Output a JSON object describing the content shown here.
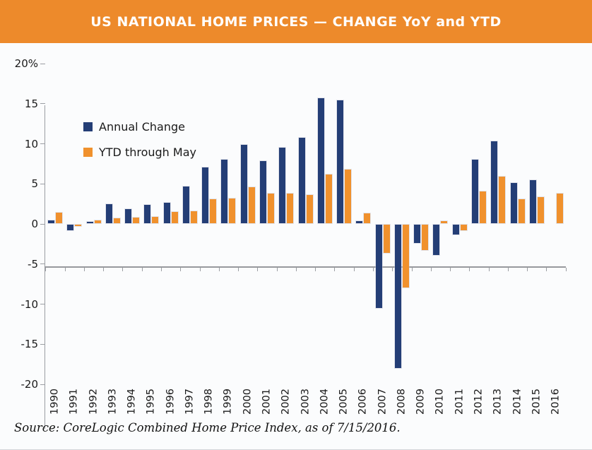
{
  "header": {
    "title": "US NATIONAL HOME PRICES — CHANGE YoY and YTD",
    "bg_color": "#ed8a2b"
  },
  "legend": {
    "items": [
      {
        "label": "Annual Change",
        "color": "#243e76"
      },
      {
        "label": "YTD through May",
        "color": "#f0912d"
      }
    ]
  },
  "source": {
    "text": "Source: CoreLogic Combined Home Price Index, as of 7/15/2016."
  },
  "colors": {
    "header_bg": "#ed8a2b",
    "annual_bar": "#243e76",
    "ytd_bar": "#f0912d",
    "axis": "#9b9ea3",
    "background": "#fbfcfd"
  },
  "chart_data": {
    "type": "bar",
    "title": "US NATIONAL HOME PRICES — CHANGE YoY and YTD",
    "categories": [
      "1990",
      "1991",
      "1992",
      "1993",
      "1994",
      "1995",
      "1996",
      "1997",
      "1998",
      "1999",
      "2000",
      "2001",
      "2002",
      "2003",
      "2004",
      "2005",
      "2006",
      "2007",
      "2008",
      "2009",
      "2010",
      "2011",
      "2012",
      "2013",
      "2014",
      "2015",
      "2016"
    ],
    "series": [
      {
        "name": "Annual Change",
        "color": "#243e76",
        "values": [
          0.4,
          -0.7,
          0.2,
          2.4,
          1.8,
          2.3,
          2.6,
          4.6,
          7.0,
          7.9,
          9.8,
          7.8,
          9.4,
          10.7,
          15.6,
          15.3,
          0.3,
          -10.4,
          -17.9,
          -2.3,
          -3.8,
          -1.2,
          7.9,
          10.2,
          5.0,
          5.4,
          null
        ]
      },
      {
        "name": "YTD through May",
        "color": "#f0912d",
        "values": [
          1.3,
          -0.2,
          0.4,
          0.6,
          0.7,
          0.8,
          1.4,
          1.5,
          3.0,
          3.1,
          4.5,
          3.7,
          3.7,
          3.5,
          6.1,
          6.7,
          1.2,
          -3.5,
          -7.8,
          -3.2,
          0.3,
          -0.7,
          4.0,
          5.8,
          3.0,
          3.3,
          3.7
        ]
      }
    ],
    "ylim": [
      -20,
      20
    ],
    "y_ticks": [
      {
        "label": "20%",
        "value": 20
      },
      {
        "label": "15",
        "value": 15
      },
      {
        "label": "10",
        "value": 10
      },
      {
        "label": "5",
        "value": 5
      },
      {
        "label": "0",
        "value": 0
      },
      {
        "label": "-5",
        "value": -5
      },
      {
        "label": "-10",
        "value": -10
      },
      {
        "label": "-15",
        "value": -15
      },
      {
        "label": "-20",
        "value": -20
      }
    ],
    "grid": false,
    "legend_position": "inside-top-left",
    "xlabel": "",
    "ylabel": ""
  }
}
